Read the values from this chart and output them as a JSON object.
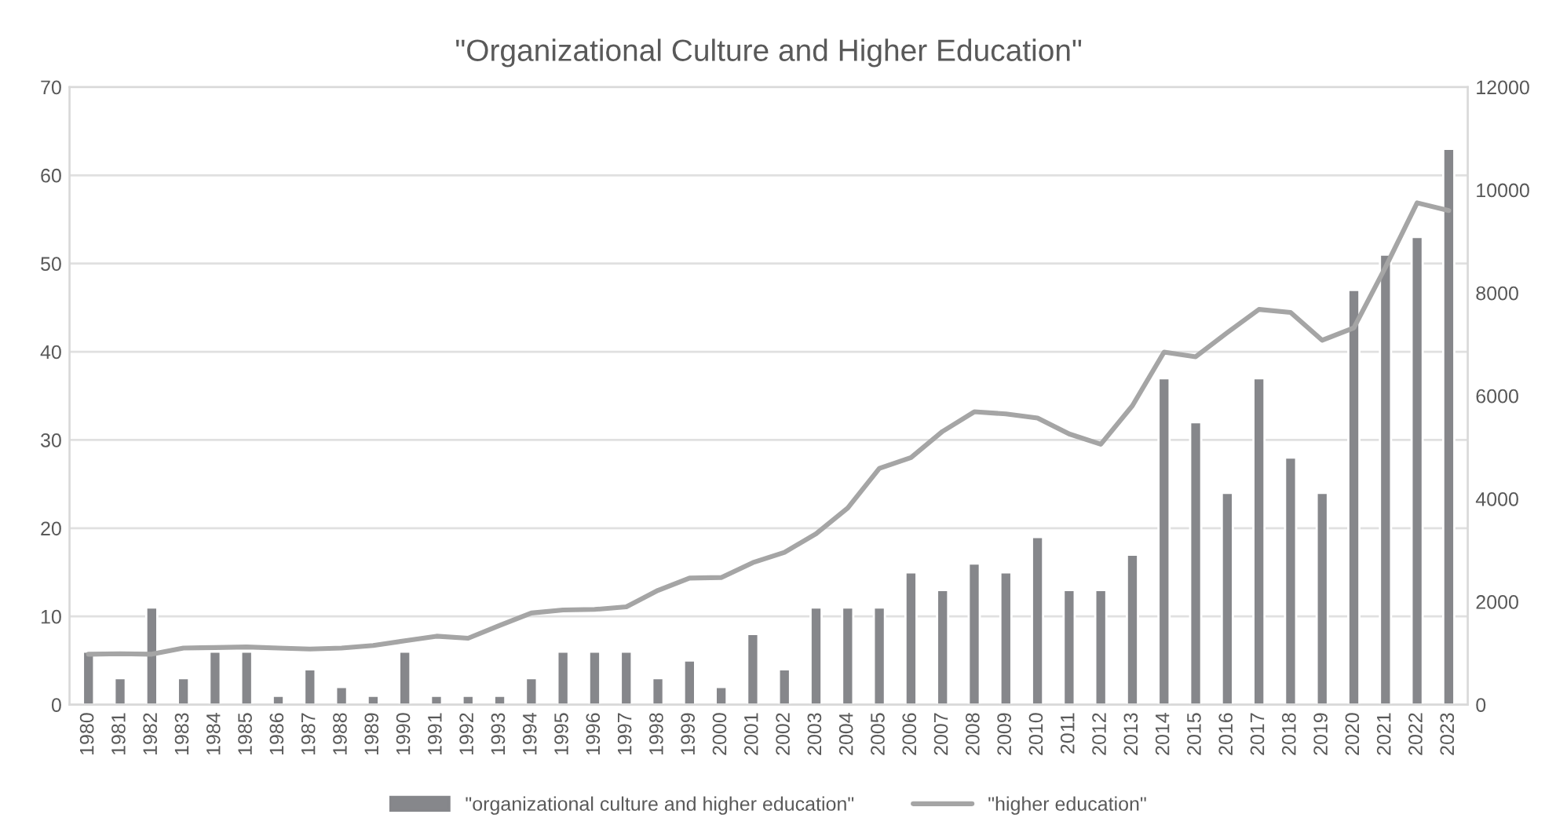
{
  "chart_data": {
    "type": "bar",
    "title": "\"Organizational Culture and Higher Education\"",
    "categories": [
      "1980",
      "1981",
      "1982",
      "1983",
      "1984",
      "1985",
      "1986",
      "1987",
      "1988",
      "1989",
      "1990",
      "1991",
      "1992",
      "1993",
      "1994",
      "1995",
      "1996",
      "1997",
      "1998",
      "1999",
      "2000",
      "2001",
      "2002",
      "2003",
      "2004",
      "2005",
      "2006",
      "2007",
      "2008",
      "2009",
      "2010",
      "2011",
      "2012",
      "2013",
      "2014",
      "2015",
      "2016",
      "2017",
      "2018",
      "2019",
      "2020",
      "2021",
      "2022",
      "2023"
    ],
    "series": [
      {
        "name": "\"organizational culture and higher education\"",
        "color": "#86878b",
        "values": [
          6,
          3,
          11,
          3,
          6,
          6,
          1,
          4,
          2,
          1,
          6,
          1,
          1,
          1,
          3,
          6,
          6,
          6,
          3,
          5,
          2,
          8,
          4,
          11,
          11,
          11,
          15,
          13,
          16,
          15,
          19,
          13,
          13,
          17,
          37,
          32,
          24,
          37,
          28,
          24,
          47,
          51,
          53,
          63
        ]
      },
      {
        "name": "\"higher education\"",
        "type": "line",
        "axis": "y2",
        "color": "#a5a5a5",
        "values": [
          980,
          990,
          980,
          1100,
          1110,
          1120,
          1100,
          1080,
          1100,
          1150,
          1240,
          1330,
          1290,
          1540,
          1780,
          1840,
          1850,
          1900,
          2220,
          2460,
          2470,
          2760,
          2960,
          3320,
          3820,
          4590,
          4800,
          5310,
          5690,
          5650,
          5570,
          5260,
          5060,
          5810,
          6850,
          6760,
          7230,
          7680,
          7620,
          7080,
          7320,
          8500,
          9750,
          9600
        ]
      }
    ],
    "ylim": [
      0,
      70
    ],
    "yticks": [
      0,
      10,
      20,
      30,
      40,
      50,
      60,
      70
    ],
    "y2lim": [
      0,
      12000
    ],
    "y2ticks": [
      0,
      2000,
      4000,
      6000,
      8000,
      10000,
      12000
    ],
    "grid": "y",
    "legend": "bottom",
    "marker": "none",
    "line_style": "solid"
  }
}
